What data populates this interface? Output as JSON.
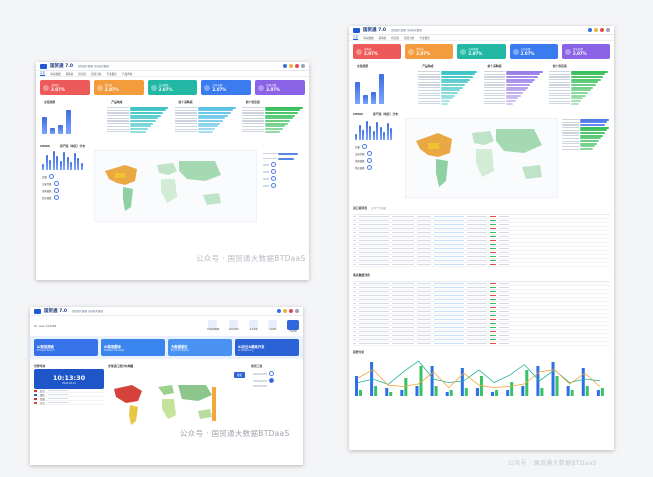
{
  "watermarks": {
    "center": "公众号 · 国贸通大数据BTDaaS",
    "right_bottom": "公众号 · 国贸通大数据BTDaaS"
  },
  "dashboard": {
    "brand": "国贸通 7.0",
    "brand_sub": "国贸通大数据 全球海关数据",
    "nav": [
      "首页",
      "海关数据",
      "采购商",
      "供应商",
      "贸易分析",
      "行业报告",
      "产品查询",
      "设置"
    ],
    "kpis": [
      {
        "label": "采购商",
        "value": "2.07%",
        "color": "#ee5a5a"
      },
      {
        "label": "供应商",
        "value": "2.07%",
        "color": "#f39c3d"
      },
      {
        "label": "交易笔数",
        "value": "2.07%",
        "color": "#23b8a5"
      },
      {
        "label": "交易金额",
        "value": "2.07%",
        "color": "#3a7bf0"
      },
      {
        "label": "贸易总额",
        "value": "2.07%",
        "color": "#8a63e6"
      }
    ],
    "sections": {
      "summary": "交易趋势",
      "products": "产品构成",
      "buyers": "前十采购商",
      "suppliers": "前十供应商",
      "map": "原产国（地区）分布",
      "country": "CHINA"
    },
    "bar_values": [
      38,
      14,
      20,
      55
    ],
    "stat_labels": [
      "总量",
      "交易次数",
      "采购商数",
      "供应商数"
    ]
  },
  "dashboard_large": {
    "brand": "国贸通 7.0",
    "brand_sub": "国贸通大数据 全球海关数据",
    "nav": [
      "首页",
      "海关数据",
      "采购商",
      "供应商",
      "贸易分析",
      "行业报告",
      "产品查询",
      "设置"
    ],
    "kpis": [
      {
        "label": "采购商",
        "value": "2.07%",
        "color": "#ee5a5a"
      },
      {
        "label": "供应商",
        "value": "2.07%",
        "color": "#f39c3d"
      },
      {
        "label": "交易笔数",
        "value": "2.07%",
        "color": "#23b8a5"
      },
      {
        "label": "交易金额",
        "value": "2.07%",
        "color": "#3a7bf0"
      },
      {
        "label": "贸易总额",
        "value": "2.07%",
        "color": "#8a63e6"
      }
    ],
    "sections": {
      "summary": "交易趋势",
      "products": "产品构成",
      "buyers": "前十采购商",
      "suppliers": "前十供应商",
      "map": "原产国（地区）分布",
      "country": "CHINA",
      "table1": "进口商列表",
      "table1_sub": "近12个月数据",
      "table2": "海关数据列表",
      "chart": "趋势分析"
    },
    "bar_values": [
      42,
      18,
      24,
      58
    ],
    "stat_labels": [
      "总量",
      "交易次数",
      "采购商数",
      "供应商数"
    ],
    "trend": {
      "bars_blue": [
        20,
        34,
        8,
        6,
        10,
        30,
        4,
        28,
        8,
        4,
        6,
        10,
        30,
        34,
        10,
        28,
        6
      ],
      "bars_green": [
        6,
        10,
        4,
        18,
        30,
        10,
        6,
        8,
        20,
        6,
        14,
        26,
        8,
        20,
        6,
        10,
        8
      ]
    }
  },
  "portal": {
    "brand": "国贸通 7.0",
    "brand_sub": "国贸通大数据 全球海关数据",
    "welcome": "Hi, user 123456",
    "tools": [
      "全球贸易数据",
      "进出口统计",
      "企业背调",
      "行业报告",
      "产品分析"
    ],
    "features": [
      {
        "title": "AI智能搜索",
        "sub": "BTDaaS Search",
        "color": "#3673e8"
      },
      {
        "title": "AI智能翻译",
        "sub": "BTDaaS Translate",
        "color": "#3b86ee"
      },
      {
        "title": "大数据报告",
        "sub": "Big Data Report",
        "color": "#4a92f2"
      },
      {
        "title": "AI定位&精准开发",
        "sub": "AI Positioning",
        "color": "#2b62d6"
      }
    ],
    "world_clock": {
      "title": "世界时钟",
      "time": "10:13:30",
      "date": "2024-03-15"
    },
    "cities": [
      "北京",
      "纽约",
      "伦敦",
      "东京"
    ],
    "map_title": "全球进口商分布地图",
    "tools_title": "常用工具",
    "search_btn": "搜索"
  }
}
